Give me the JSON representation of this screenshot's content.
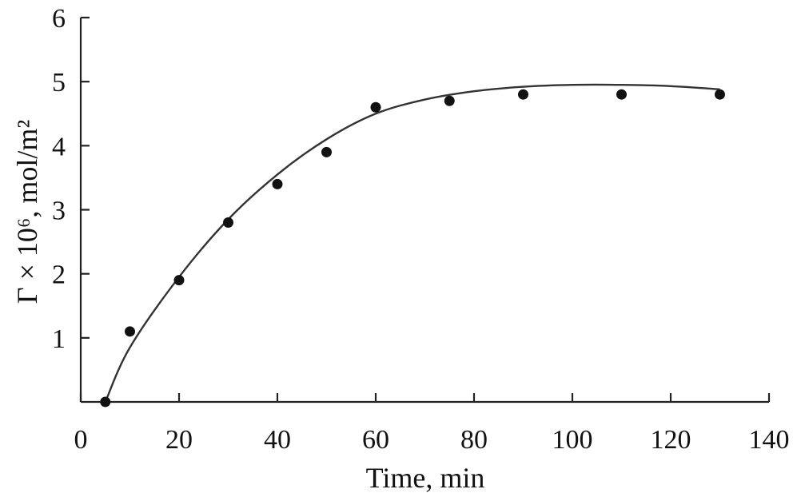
{
  "chart_data": {
    "type": "scatter",
    "xlabel": "Time, min",
    "ylabel": "Γ × 10⁶, mol/m²",
    "xlim": [
      0,
      140
    ],
    "ylim": [
      0,
      6
    ],
    "x_ticks": [
      0,
      20,
      40,
      60,
      80,
      100,
      120,
      140
    ],
    "y_ticks": [
      1,
      2,
      3,
      4,
      5,
      6
    ],
    "grid": false,
    "series": [
      {
        "type": "scatter",
        "x": [
          5,
          10,
          20,
          30,
          40,
          50,
          60,
          75,
          90,
          110,
          130
        ],
        "y": [
          0.0,
          1.1,
          1.9,
          2.8,
          3.4,
          3.9,
          4.6,
          4.7,
          4.8,
          4.8,
          4.8
        ]
      },
      {
        "type": "line",
        "x": [
          5,
          10,
          20,
          30,
          40,
          50,
          60,
          70,
          80,
          90,
          100,
          110,
          120,
          130
        ],
        "y": [
          0.0,
          0.85,
          1.95,
          2.85,
          3.55,
          4.1,
          4.5,
          4.72,
          4.85,
          4.92,
          4.95,
          4.95,
          4.93,
          4.88
        ]
      }
    ]
  }
}
